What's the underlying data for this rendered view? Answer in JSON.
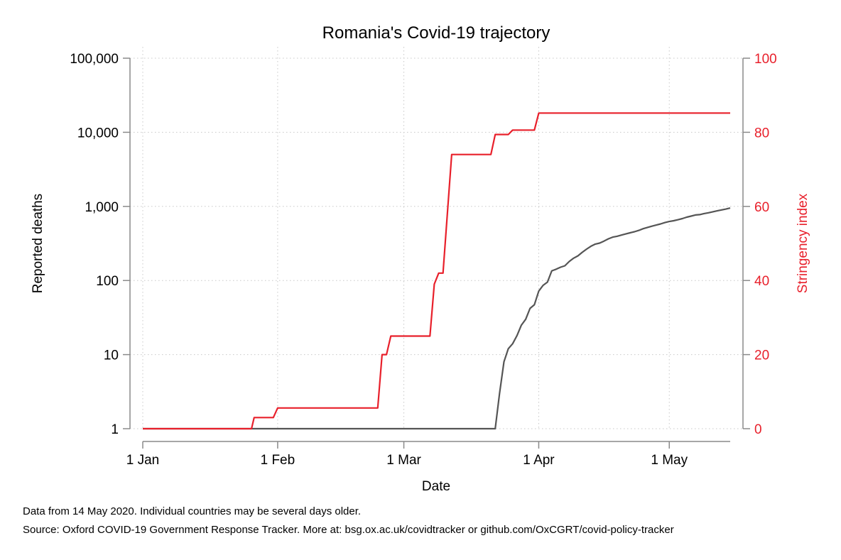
{
  "chart_data": {
    "type": "line",
    "title": "Romania's Covid-19 trajectory",
    "xlabel": "Date",
    "ylabel_left": "Reported deaths",
    "ylabel_right": "Stringency index",
    "x_ticks": [
      {
        "label": "1 Jan",
        "day": 0
      },
      {
        "label": "1 Feb",
        "day": 31
      },
      {
        "label": "1 Mar",
        "day": 60
      },
      {
        "label": "1 Apr",
        "day": 91
      },
      {
        "label": "1 May",
        "day": 121
      }
    ],
    "x_range_days": [
      0,
      135
    ],
    "y_left": {
      "scale": "log",
      "range": [
        1,
        100000
      ],
      "ticks": [
        1,
        10,
        100,
        1000,
        10000,
        100000
      ],
      "tick_labels": [
        "1",
        "10",
        "100",
        "1,000",
        "10,000",
        "100,000"
      ]
    },
    "y_right": {
      "scale": "linear",
      "range": [
        0,
        100
      ],
      "ticks": [
        0,
        20,
        40,
        60,
        80,
        100
      ],
      "tick_labels": [
        "0",
        "20",
        "40",
        "60",
        "80",
        "100"
      ]
    },
    "series": [
      {
        "name": "Reported deaths",
        "axis": "left",
        "color": "#555555",
        "points": [
          [
            0,
            1
          ],
          [
            81,
            1
          ],
          [
            82,
            3
          ],
          [
            83,
            8
          ],
          [
            84,
            12
          ],
          [
            85,
            14
          ],
          [
            86,
            18
          ],
          [
            87,
            25
          ],
          [
            88,
            30
          ],
          [
            89,
            42
          ],
          [
            90,
            47
          ],
          [
            91,
            72
          ],
          [
            92,
            86
          ],
          [
            93,
            95
          ],
          [
            94,
            135
          ],
          [
            95,
            142
          ],
          [
            96,
            151
          ],
          [
            97,
            158
          ],
          [
            98,
            180
          ],
          [
            99,
            200
          ],
          [
            100,
            215
          ],
          [
            101,
            240
          ],
          [
            102,
            265
          ],
          [
            103,
            290
          ],
          [
            104,
            310
          ],
          [
            105,
            320
          ],
          [
            106,
            340
          ],
          [
            107,
            365
          ],
          [
            108,
            385
          ],
          [
            109,
            395
          ],
          [
            110,
            410
          ],
          [
            111,
            425
          ],
          [
            112,
            440
          ],
          [
            113,
            455
          ],
          [
            114,
            475
          ],
          [
            115,
            500
          ],
          [
            116,
            520
          ],
          [
            117,
            540
          ],
          [
            118,
            560
          ],
          [
            119,
            580
          ],
          [
            120,
            605
          ],
          [
            121,
            625
          ],
          [
            122,
            640
          ],
          [
            123,
            660
          ],
          [
            124,
            685
          ],
          [
            125,
            715
          ],
          [
            126,
            740
          ],
          [
            127,
            765
          ],
          [
            128,
            775
          ],
          [
            129,
            800
          ],
          [
            130,
            820
          ],
          [
            131,
            845
          ],
          [
            132,
            870
          ],
          [
            133,
            895
          ],
          [
            134,
            920
          ],
          [
            135,
            950
          ]
        ]
      },
      {
        "name": "Stringency index",
        "axis": "right",
        "color": "#e8202b",
        "points": [
          [
            0,
            0
          ],
          [
            25,
            0
          ],
          [
            25.6,
            3
          ],
          [
            30,
            3
          ],
          [
            31,
            5.6
          ],
          [
            54,
            5.6
          ],
          [
            55,
            20
          ],
          [
            56,
            20
          ],
          [
            57,
            25
          ],
          [
            66,
            25
          ],
          [
            67,
            39
          ],
          [
            68,
            42
          ],
          [
            69,
            42
          ],
          [
            71,
            74
          ],
          [
            80,
            74
          ],
          [
            81,
            79.4
          ],
          [
            84,
            79.4
          ],
          [
            85,
            80.6
          ],
          [
            90,
            80.6
          ],
          [
            91,
            85.2
          ],
          [
            135,
            85.2
          ]
        ]
      }
    ]
  },
  "footnotes": {
    "line1": "Data from 14 May 2020. Individual countries may be several days older.",
    "line2": "Source: Oxford COVID-19 Government Response Tracker. More at: bsg.ox.ac.uk/covidtracker or github.com/OxCGRT/covid-policy-tracker"
  }
}
